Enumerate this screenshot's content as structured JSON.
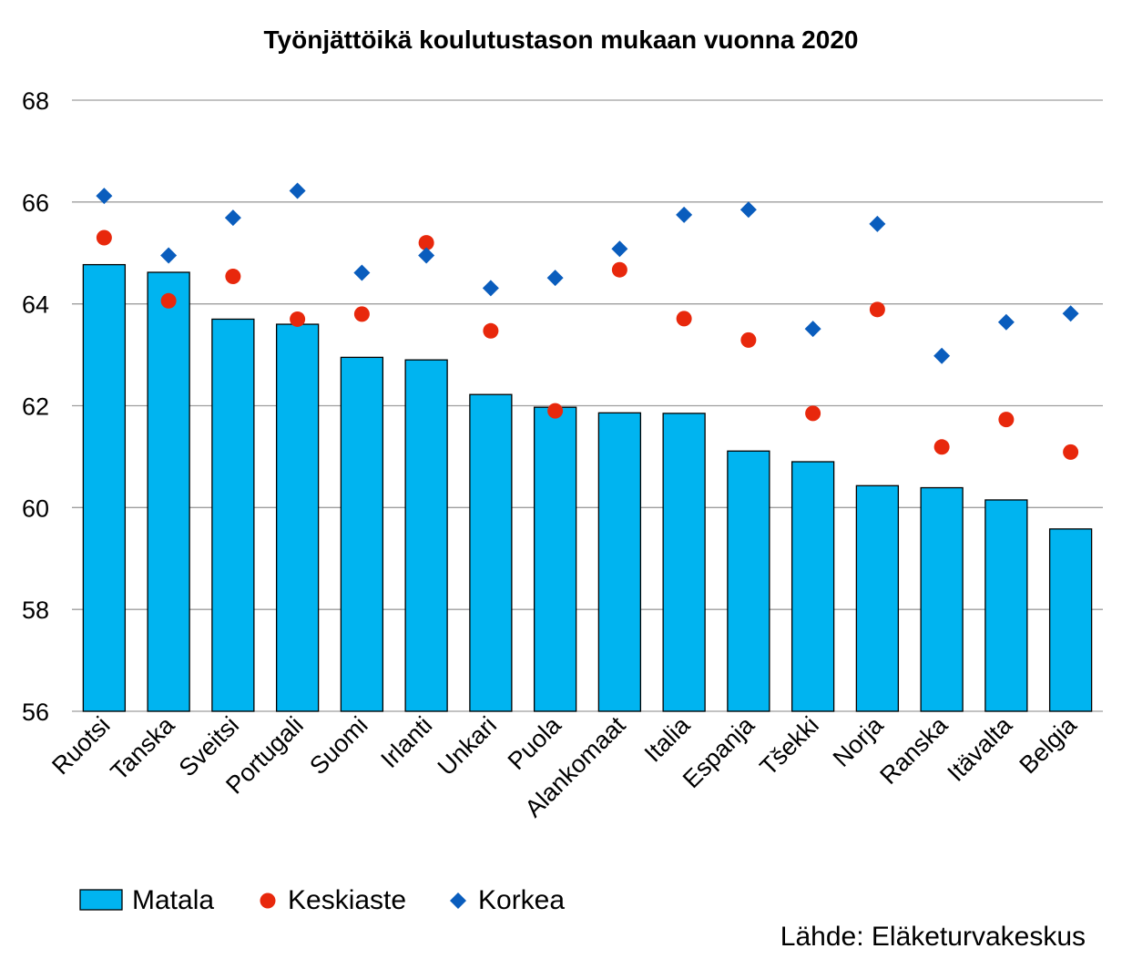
{
  "chart_data": {
    "type": "bar",
    "title": "Työnjättöikä koulutustason mukaan vuonna 2020",
    "categories": [
      "Ruotsi",
      "Tanska",
      "Sveitsi",
      "Portugali",
      "Suomi",
      "Irlanti",
      "Unkari",
      "Puola",
      "Alankomaat",
      "Italia",
      "Espanja",
      "Tšekki",
      "Norja",
      "Ranska",
      "Itävalta",
      "Belgia"
    ],
    "series": [
      {
        "name": "Matala",
        "kind": "bar",
        "color": "#00b4f0",
        "values": [
          64.77,
          64.62,
          63.7,
          63.6,
          62.95,
          62.9,
          62.22,
          61.97,
          61.86,
          61.85,
          61.11,
          60.9,
          60.43,
          60.39,
          60.15,
          59.58
        ]
      },
      {
        "name": "Keskiaste",
        "kind": "dot",
        "color": "#e8280c",
        "values": [
          65.3,
          64.06,
          64.54,
          63.7,
          63.8,
          65.2,
          63.47,
          61.9,
          64.67,
          63.71,
          63.29,
          61.85,
          63.89,
          61.19,
          61.73,
          61.09
        ]
      },
      {
        "name": "Korkea",
        "kind": "diamond",
        "color": "#0a5dbd",
        "values": [
          66.12,
          64.95,
          65.69,
          66.22,
          64.61,
          64.95,
          64.31,
          64.51,
          65.08,
          65.75,
          65.85,
          63.51,
          65.57,
          62.98,
          63.64,
          63.81
        ]
      }
    ],
    "ylim": [
      56,
      68
    ],
    "yticks": [
      "56",
      "58",
      "60",
      "62",
      "64",
      "66",
      "68"
    ],
    "xlabel": "",
    "ylabel": "",
    "grid": true,
    "legend_position": "bottom-left",
    "source": "Lähde: Eläketurvakeskus"
  }
}
